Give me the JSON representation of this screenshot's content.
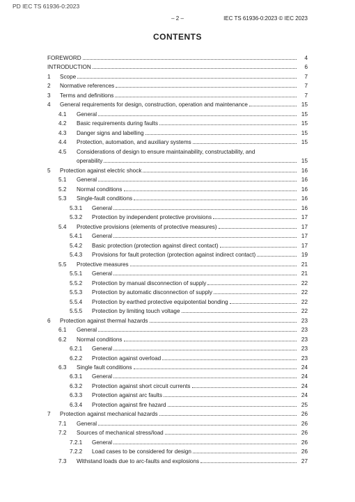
{
  "doc_id": "PD IEC TS 61936-0:2023",
  "header": {
    "page_marker": "– 2 –",
    "right": "IEC TS 61936-0:2023 © IEC 2023"
  },
  "title": "CONTENTS",
  "entries": [
    {
      "level": 0,
      "num": "",
      "text": "FOREWORD",
      "page": "4"
    },
    {
      "level": 0,
      "num": "",
      "text": "INTRODUCTION",
      "page": "6"
    },
    {
      "level": 1,
      "num": "1",
      "text": "Scope",
      "page": "7"
    },
    {
      "level": 1,
      "num": "2",
      "text": "Normative references",
      "page": "7"
    },
    {
      "level": 1,
      "num": "3",
      "text": "Terms and definitions",
      "page": "7"
    },
    {
      "level": 1,
      "num": "4",
      "text": "General requirements for design, construction, operation and maintenance",
      "page": "15"
    },
    {
      "level": 2,
      "num": "4.1",
      "text": "General",
      "page": "15"
    },
    {
      "level": 2,
      "num": "4.2",
      "text": "Basic requirements during faults",
      "page": "15"
    },
    {
      "level": 2,
      "num": "4.3",
      "text": "Danger signs and labelling",
      "page": "15"
    },
    {
      "level": 2,
      "num": "4.4",
      "text": "Protection, automation, and auxiliary systems",
      "page": "15"
    },
    {
      "level": 2,
      "num": "4.5",
      "text": "Considerations of design to ensure maintainability, constructability, and operability",
      "page": "15",
      "wrap": true
    },
    {
      "level": 1,
      "num": "5",
      "text": "Protection against electric shock",
      "page": "16"
    },
    {
      "level": 2,
      "num": "5.1",
      "text": "General",
      "page": "16"
    },
    {
      "level": 2,
      "num": "5.2",
      "text": "Normal conditions",
      "page": "16"
    },
    {
      "level": 2,
      "num": "5.3",
      "text": "Single-fault conditions",
      "page": "16"
    },
    {
      "level": 3,
      "num": "5.3.1",
      "text": "General",
      "page": "16"
    },
    {
      "level": 3,
      "num": "5.3.2",
      "text": "Protection by independent protective provisions",
      "page": "17"
    },
    {
      "level": 2,
      "num": "5.4",
      "text": "Protective provisions (elements of protective measures)",
      "page": "17"
    },
    {
      "level": 3,
      "num": "5.4.1",
      "text": "General",
      "page": "17"
    },
    {
      "level": 3,
      "num": "5.4.2",
      "text": "Basic protection (protection against direct contact)",
      "page": "17"
    },
    {
      "level": 3,
      "num": "5.4.3",
      "text": "Provisions for fault protection (protection against indirect contact)",
      "page": "19"
    },
    {
      "level": 2,
      "num": "5.5",
      "text": "Protective measures",
      "page": "21"
    },
    {
      "level": 3,
      "num": "5.5.1",
      "text": "General",
      "page": "21"
    },
    {
      "level": 3,
      "num": "5.5.2",
      "text": "Protection by manual disconnection of supply",
      "page": "22"
    },
    {
      "level": 3,
      "num": "5.5.3",
      "text": "Protection by automatic disconnection of supply",
      "page": "22"
    },
    {
      "level": 3,
      "num": "5.5.4",
      "text": "Protection by earthed protective equipotential bonding",
      "page": "22"
    },
    {
      "level": 3,
      "num": "5.5.5",
      "text": "Protection by limiting touch voltage",
      "page": "22"
    },
    {
      "level": 1,
      "num": "6",
      "text": "Protection against thermal hazards",
      "page": "23"
    },
    {
      "level": 2,
      "num": "6.1",
      "text": "General",
      "page": "23"
    },
    {
      "level": 2,
      "num": "6.2",
      "text": "Normal conditions",
      "page": "23"
    },
    {
      "level": 3,
      "num": "6.2.1",
      "text": "General",
      "page": "23"
    },
    {
      "level": 3,
      "num": "6.2.2",
      "text": "Protection against overload",
      "page": "23"
    },
    {
      "level": 2,
      "num": "6.3",
      "text": "Single fault conditions",
      "page": "24"
    },
    {
      "level": 3,
      "num": "6.3.1",
      "text": "General",
      "page": "24"
    },
    {
      "level": 3,
      "num": "6.3.2",
      "text": "Protection against short circuit currents",
      "page": "24"
    },
    {
      "level": 3,
      "num": "6.3.3",
      "text": "Protection against arc faults",
      "page": "24"
    },
    {
      "level": 3,
      "num": "6.3.4",
      "text": "Protection against fire hazard",
      "page": "25"
    },
    {
      "level": 1,
      "num": "7",
      "text": "Protection against mechanical hazards",
      "page": "26"
    },
    {
      "level": 2,
      "num": "7.1",
      "text": "General",
      "page": "26"
    },
    {
      "level": 2,
      "num": "7.2",
      "text": "Sources of mechanical stress/load",
      "page": "26"
    },
    {
      "level": 3,
      "num": "7.2.1",
      "text": "General",
      "page": "26"
    },
    {
      "level": 3,
      "num": "7.2.2",
      "text": "Load cases to be considered for design",
      "page": "26"
    },
    {
      "level": 2,
      "num": "7.3",
      "text": "Withstand loads due to arc-faults and explosions",
      "page": "27"
    }
  ]
}
